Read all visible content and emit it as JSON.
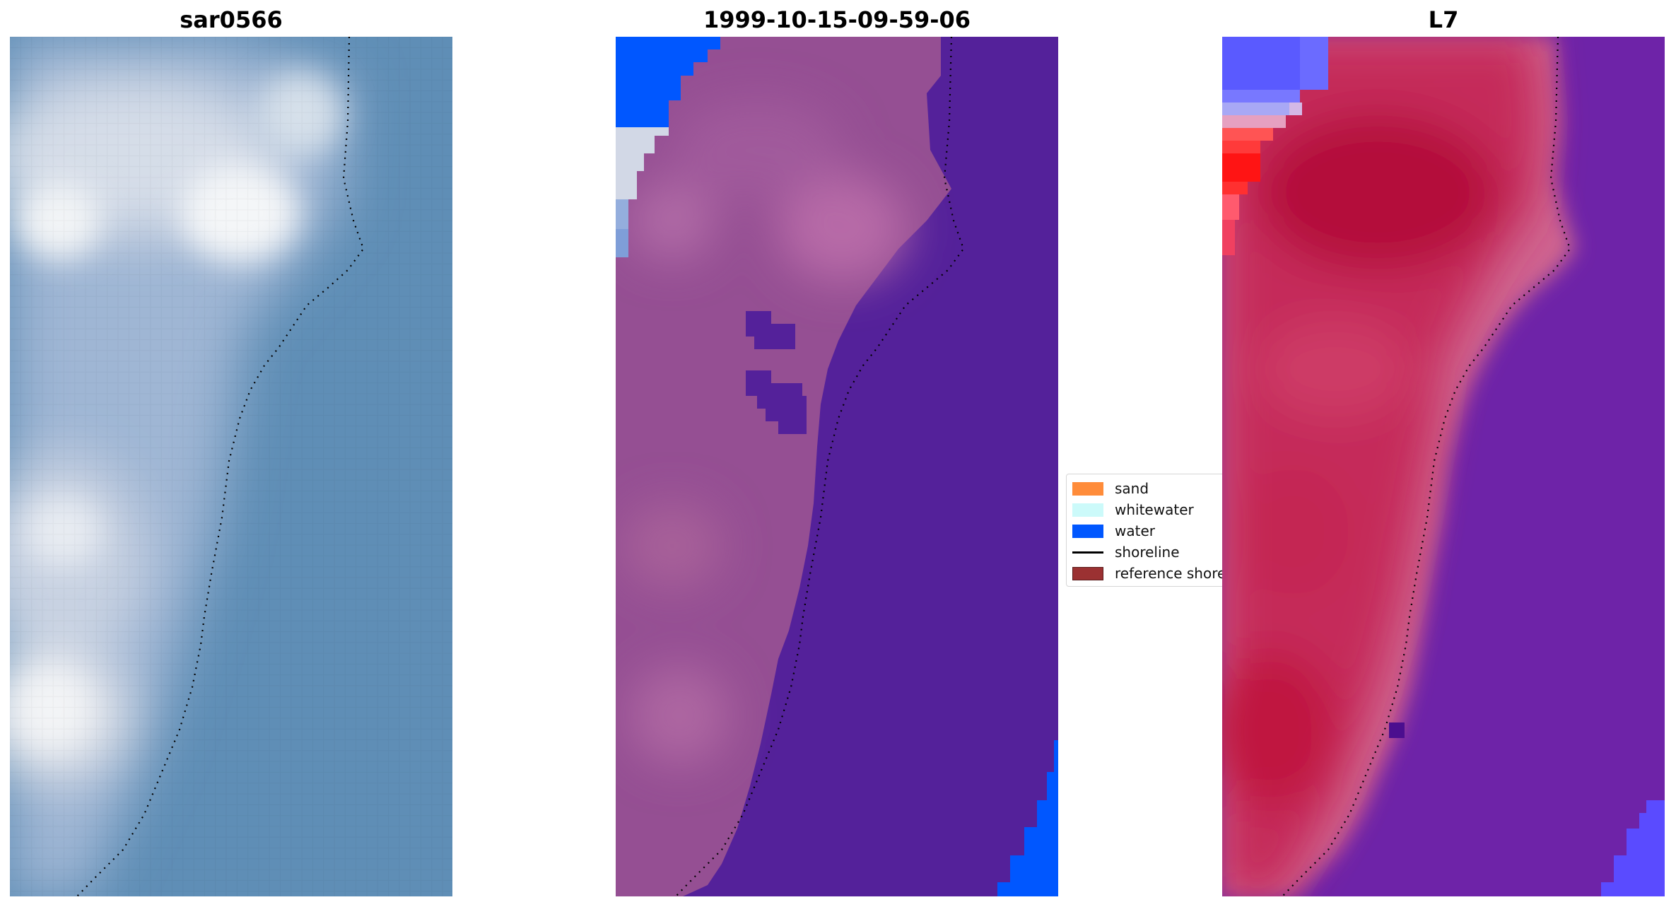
{
  "panels": {
    "left": {
      "title": "sar0566"
    },
    "middle": {
      "title": "1999-10-15-09-59-06"
    },
    "right": {
      "title": "L7"
    }
  },
  "legend": {
    "items": [
      {
        "label": "sand",
        "kind": "patch",
        "color": "#ff8c3a"
      },
      {
        "label": "whitewater",
        "kind": "patch",
        "color": "#ccfafa"
      },
      {
        "label": "water",
        "kind": "patch",
        "color": "#0057ff"
      },
      {
        "label": "shoreline",
        "kind": "line",
        "color": "#000000"
      },
      {
        "label": "reference shoreline",
        "kind": "patch",
        "color": "#9b3132"
      }
    ]
  },
  "colors": {
    "rgb_water": "#5b8bb5",
    "rgb_land": "#b4c4dc",
    "class_land": "#954f93",
    "class_sea": "#54219a",
    "class_water": "#0057ff",
    "ndwi_land": "#c32050",
    "ndwi_sea": "#6b22a6"
  }
}
